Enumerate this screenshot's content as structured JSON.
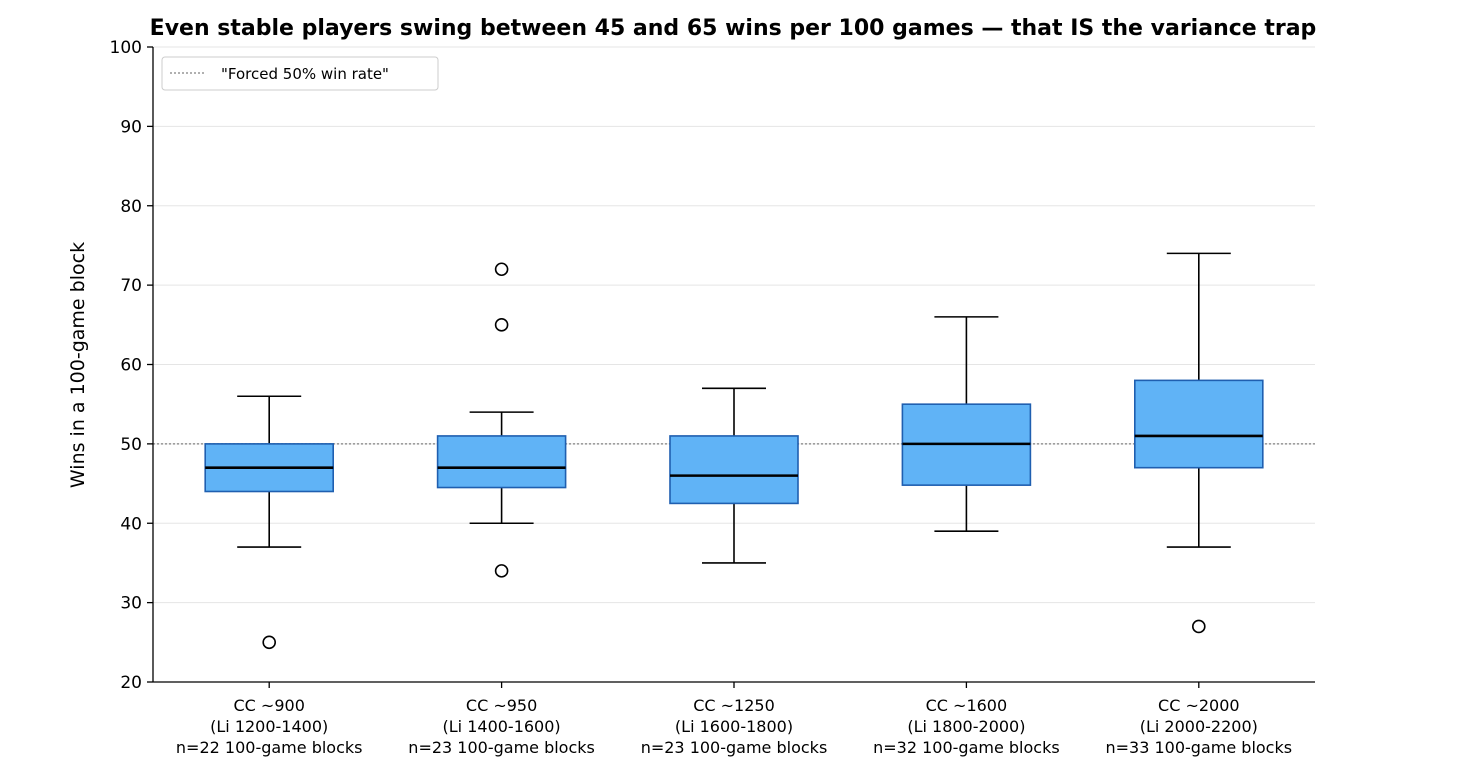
{
  "chart_data": {
    "type": "box",
    "title": "Even stable players swing between 45 and 65 wins per 100 games — that IS the variance trap",
    "xlabel": "",
    "ylabel": "Wins in a 100-game block",
    "ylim": [
      20,
      100
    ],
    "yticks": [
      20,
      30,
      40,
      50,
      60,
      70,
      80,
      90,
      100
    ],
    "grid": "y",
    "legend": {
      "placement": "top-left",
      "entries": [
        "\"Forced 50% win rate\""
      ]
    },
    "reference_line": {
      "y": 50,
      "label": "\"Forced 50% win rate\"",
      "style": "dotted",
      "color": "#808080"
    },
    "colors": {
      "box_fill": "#60b3f6",
      "box_edge": "#1f5fb0",
      "median": "#000000",
      "whisker": "#000000",
      "grid": "#e5e5e5"
    },
    "categories": [
      [
        "CC ~900",
        "(Li 1200-1400)",
        "n=22 100-game blocks"
      ],
      [
        "CC ~950",
        "(Li 1400-1600)",
        "n=23 100-game blocks"
      ],
      [
        "CC ~1250",
        "(Li 1600-1800)",
        "n=23 100-game blocks"
      ],
      [
        "CC ~1600",
        "(Li 1800-2000)",
        "n=32 100-game blocks"
      ],
      [
        "CC ~2000",
        "(Li 2000-2200)",
        "n=33 100-game blocks"
      ]
    ],
    "boxes": [
      {
        "whisker_low": 37,
        "q1": 44,
        "median": 47,
        "q3": 50,
        "whisker_high": 56,
        "outliers": [
          25
        ]
      },
      {
        "whisker_low": 40,
        "q1": 44.5,
        "median": 47,
        "q3": 51,
        "whisker_high": 54,
        "outliers": [
          34,
          65,
          72
        ]
      },
      {
        "whisker_low": 35,
        "q1": 42.5,
        "median": 46,
        "q3": 51,
        "whisker_high": 57,
        "outliers": []
      },
      {
        "whisker_low": 39,
        "q1": 44.8,
        "median": 50,
        "q3": 55,
        "whisker_high": 66,
        "outliers": []
      },
      {
        "whisker_low": 37,
        "q1": 47,
        "median": 51,
        "q3": 58,
        "whisker_high": 74,
        "outliers": [
          27
        ]
      }
    ]
  }
}
